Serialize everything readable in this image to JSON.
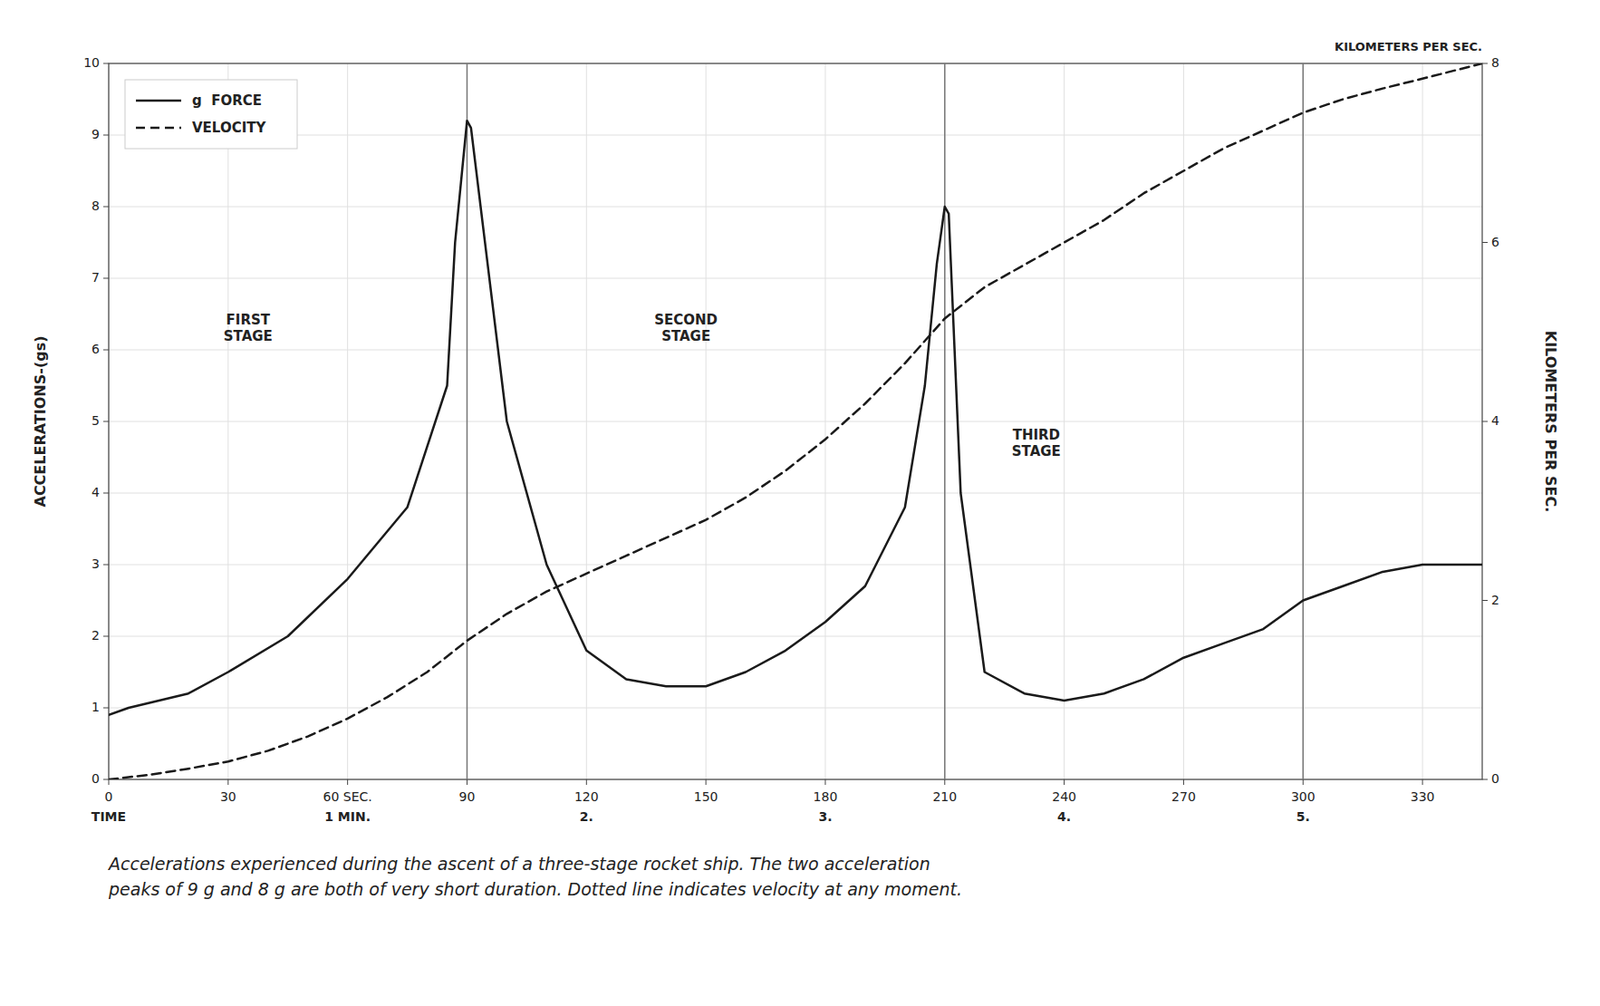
{
  "chart_data": {
    "type": "line",
    "caption": "Accelerations experienced during the ascent of a three-stage rocket ship. The two acceleration\npeaks of 9 g and 8 g are both of very short duration. Dotted line indicates velocity at any moment.",
    "y_label": "ACCELERATIONS-(gs)",
    "y2_label": "KILOMETERS PER SEC.",
    "y2_note": "KILOMETERS PER SEC.",
    "xlim": [
      0,
      345
    ],
    "xticks": [
      0,
      30,
      {
        "value": 60,
        "label": "60 SEC."
      },
      90,
      120,
      150,
      180,
      210,
      240,
      270,
      300,
      330
    ],
    "x_sublabels": [
      {
        "value": 0,
        "label": "TIME"
      },
      {
        "value": 60,
        "label": "1 MIN."
      },
      {
        "value": 120,
        "label": "2."
      },
      {
        "value": 180,
        "label": "3."
      },
      {
        "value": 240,
        "label": "4."
      },
      {
        "value": 300,
        "label": "5."
      }
    ],
    "ylim": [
      0,
      10
    ],
    "yticks": [
      0,
      1,
      2,
      3,
      4,
      5,
      6,
      7,
      8,
      9,
      10
    ],
    "y2lim": [
      0,
      8
    ],
    "y2ticks": [
      0,
      2,
      4,
      6,
      8
    ],
    "grid": true,
    "legend": "upper left",
    "vlines": [
      90,
      210,
      300
    ],
    "annotations": [
      {
        "text": "FIRST\nSTAGE",
        "x": 35,
        "y": 6.3
      },
      {
        "text": "SECOND\nSTAGE",
        "x": 145,
        "y": 6.3
      },
      {
        "text": "THIRD\nSTAGE",
        "x": 233,
        "y": 4.7
      }
    ],
    "series": [
      {
        "name": "g  FORCE",
        "color": "#1a1a1a",
        "line_style": "solid",
        "x": [
          0,
          5,
          20,
          30,
          45,
          60,
          75,
          85,
          87,
          90,
          91,
          100,
          110,
          120,
          130,
          140,
          150,
          160,
          170,
          180,
          190,
          200,
          205,
          208,
          210,
          211,
          214,
          220,
          230,
          240,
          250,
          260,
          270,
          280,
          290,
          300,
          310,
          320,
          330,
          345
        ],
        "values": [
          0.9,
          1.0,
          1.2,
          1.5,
          2.0,
          2.8,
          3.8,
          5.5,
          7.5,
          9.2,
          9.1,
          5.0,
          3.0,
          1.8,
          1.4,
          1.3,
          1.3,
          1.5,
          1.8,
          2.2,
          2.7,
          3.8,
          5.5,
          7.2,
          8.0,
          7.9,
          4.0,
          1.5,
          1.2,
          1.1,
          1.2,
          1.4,
          1.7,
          1.9,
          2.1,
          2.5,
          2.7,
          2.9,
          3.0,
          3.0
        ]
      },
      {
        "name": "VELOCITY",
        "color": "#1a1a1a",
        "line_style": "dashed",
        "axis": "y2",
        "x": [
          0,
          10,
          20,
          30,
          40,
          50,
          60,
          70,
          80,
          90,
          100,
          110,
          120,
          130,
          140,
          150,
          160,
          170,
          180,
          190,
          200,
          210,
          220,
          230,
          240,
          250,
          260,
          270,
          280,
          290,
          300,
          310,
          320,
          330,
          345
        ],
        "values": [
          0.0,
          0.05,
          0.12,
          0.2,
          0.32,
          0.48,
          0.68,
          0.92,
          1.2,
          1.55,
          1.85,
          2.1,
          2.3,
          2.5,
          2.7,
          2.9,
          3.15,
          3.45,
          3.8,
          4.2,
          4.65,
          5.15,
          5.5,
          5.75,
          6.0,
          6.25,
          6.55,
          6.8,
          7.05,
          7.25,
          7.45,
          7.6,
          7.72,
          7.83,
          8.0
        ]
      }
    ]
  }
}
